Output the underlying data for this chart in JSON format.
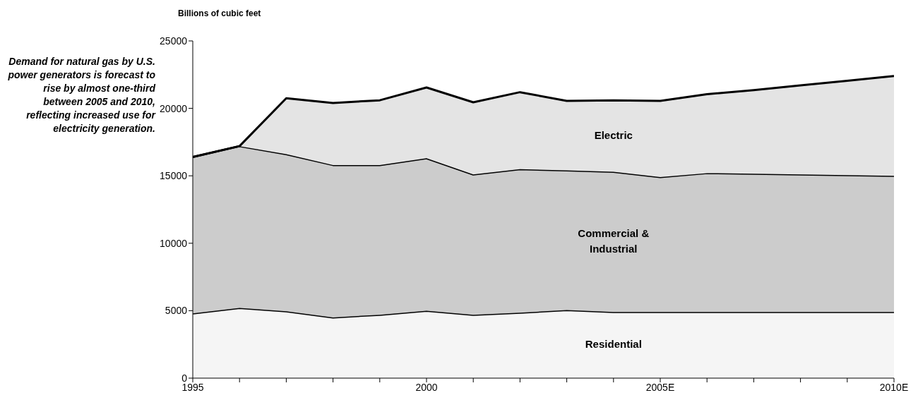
{
  "chart_data": {
    "type": "area",
    "stacked": true,
    "ylabel": "Billions of cubic feet",
    "annotations": [
      "Demand for natural gas by U.S. power generators is forecast to rise by almost one-third between 2005 and 2010, reflecting increased use for electricity generation."
    ],
    "x": [
      1995,
      1996,
      1997,
      1998,
      1999,
      2000,
      2001,
      2002,
      2003,
      2004,
      2005,
      2006,
      2007,
      2008,
      2009,
      2010
    ],
    "xlim": [
      1995,
      2010
    ],
    "xticks": [
      1995,
      {
        "value": 1996,
        "label": null
      },
      {
        "value": 1997,
        "label": null
      },
      {
        "value": 1998,
        "label": null
      },
      {
        "value": 1999,
        "label": null
      },
      2000,
      {
        "value": 2001,
        "label": null
      },
      {
        "value": 2002,
        "label": null
      },
      {
        "value": 2003,
        "label": null
      },
      {
        "value": 2004,
        "label": null
      },
      {
        "value": 2005,
        "label": "2005E"
      },
      {
        "value": 2006,
        "label": null
      },
      {
        "value": 2007,
        "label": null
      },
      {
        "value": 2008,
        "label": null
      },
      {
        "value": 2009,
        "label": null
      },
      {
        "value": 2010,
        "label": "2010E"
      }
    ],
    "ylim": [
      0,
      25000
    ],
    "yticks": [
      0,
      5000,
      10000,
      15000,
      20000,
      25000
    ],
    "series": [
      {
        "name": "Residential",
        "color": "#f5f5f5",
        "values": [
          4800,
          5200,
          4950,
          4500,
          4700,
          5000,
          4700,
          4850,
          5050,
          4900,
          4900,
          4900,
          4900,
          4900,
          4900,
          4900
        ]
      },
      {
        "name": "Commercial & Industrial",
        "color": "#cccccc",
        "values": [
          11600,
          12000,
          11650,
          11300,
          11100,
          11300,
          10400,
          10650,
          10350,
          10400,
          10000,
          10300,
          10250,
          10200,
          10150,
          10100
        ]
      },
      {
        "name": "Electric",
        "color": "#e4e4e4",
        "values": [
          0,
          0,
          4150,
          4600,
          4800,
          5250,
          5350,
          5700,
          5150,
          5300,
          5650,
          5850,
          6200,
          6600,
          7000,
          7400
        ]
      }
    ]
  }
}
